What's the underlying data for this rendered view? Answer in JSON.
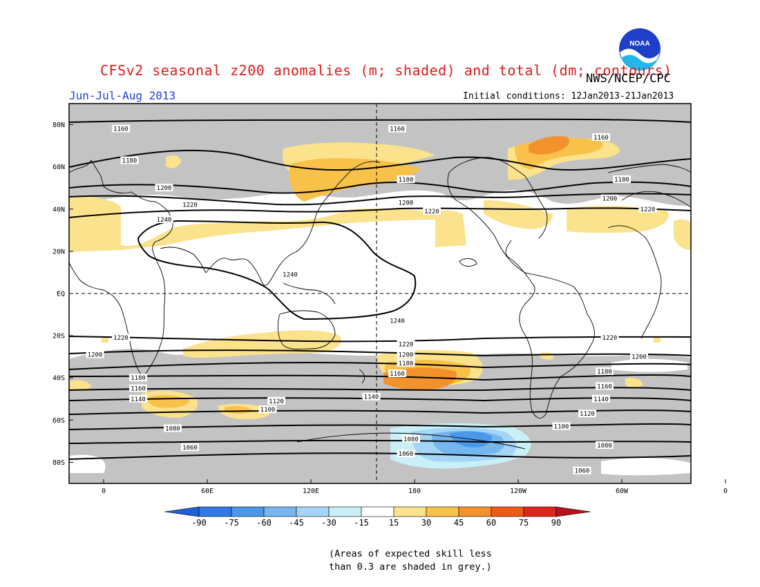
{
  "title": "CFSv2 seasonal z200 anomalies (m; shaded) and total (dm; contours)",
  "agency": "NWS/NCEP/CPC",
  "logo_text": "NOAA",
  "season": "Jun-Jul-Aug 2013",
  "initial_conditions": "Initial conditions: 12Jan2013-21Jan2013",
  "lat_labels": [
    "80N",
    "60N",
    "40N",
    "20N",
    "EQ",
    "20S",
    "40S",
    "60S",
    "80S"
  ],
  "lon_labels": [
    "0",
    "60E",
    "120E",
    "180",
    "120W",
    "60W",
    "0"
  ],
  "contour_labels": [
    {
      "text": "1160",
      "lat": 78,
      "lon": 10
    },
    {
      "text": "1160",
      "lat": 78,
      "lon": 170
    },
    {
      "text": "1160",
      "lat": 74,
      "lon": 288
    },
    {
      "text": "1180",
      "lat": 63,
      "lon": 15
    },
    {
      "text": "1180",
      "lat": 54,
      "lon": 175
    },
    {
      "text": "1180",
      "lat": 54,
      "lon": 300
    },
    {
      "text": "1200",
      "lat": 50,
      "lon": 35
    },
    {
      "text": "1200",
      "lat": 43,
      "lon": 175
    },
    {
      "text": "1200",
      "lat": 45,
      "lon": 293
    },
    {
      "text": "1220",
      "lat": 42,
      "lon": 50
    },
    {
      "text": "1220",
      "lat": 39,
      "lon": 190
    },
    {
      "text": "1220",
      "lat": 40,
      "lon": 315
    },
    {
      "text": "1240",
      "lat": 35,
      "lon": 35
    },
    {
      "text": "1240",
      "lat": 9,
      "lon": 108
    },
    {
      "text": "1240",
      "lat": -13,
      "lon": 170
    },
    {
      "text": "1220",
      "lat": -21,
      "lon": 10
    },
    {
      "text": "1220",
      "lat": -24,
      "lon": 175
    },
    {
      "text": "1220",
      "lat": -21,
      "lon": 293
    },
    {
      "text": "1200",
      "lat": -29,
      "lon": -5
    },
    {
      "text": "1200",
      "lat": -29,
      "lon": 175
    },
    {
      "text": "1200",
      "lat": -30,
      "lon": 310
    },
    {
      "text": "1180",
      "lat": -33,
      "lon": 175
    },
    {
      "text": "1180",
      "lat": -37,
      "lon": 290
    },
    {
      "text": "1180",
      "lat": -40,
      "lon": 20
    },
    {
      "text": "1160",
      "lat": -38,
      "lon": 170
    },
    {
      "text": "1160",
      "lat": -45,
      "lon": 20
    },
    {
      "text": "1160",
      "lat": -44,
      "lon": 290
    },
    {
      "text": "1140",
      "lat": -50,
      "lon": 20
    },
    {
      "text": "1140",
      "lat": -49,
      "lon": 155
    },
    {
      "text": "1140",
      "lat": -50,
      "lon": 288
    },
    {
      "text": "1120",
      "lat": -51,
      "lon": 100
    },
    {
      "text": "1120",
      "lat": -57,
      "lon": 280
    },
    {
      "text": "1100",
      "lat": -55,
      "lon": 95
    },
    {
      "text": "1100",
      "lat": -63,
      "lon": 265
    },
    {
      "text": "1080",
      "lat": -64,
      "lon": 40
    },
    {
      "text": "1080",
      "lat": -69,
      "lon": 178
    },
    {
      "text": "1080",
      "lat": -72,
      "lon": 290
    },
    {
      "text": "1060",
      "lat": -73,
      "lon": 50
    },
    {
      "text": "1060",
      "lat": -76,
      "lon": 175
    },
    {
      "text": "1060",
      "lat": -84,
      "lon": 277
    }
  ],
  "colorbar": {
    "labels": [
      "-90",
      "-75",
      "-60",
      "-45",
      "-30",
      "-15",
      "15",
      "30",
      "45",
      "60",
      "75",
      "90"
    ],
    "colors": [
      "#1f5fd6",
      "#2f7be3",
      "#4a98e8",
      "#76b6ef",
      "#a5d5f6",
      "#c9f0f6",
      "#ffffff",
      "#fbe28c",
      "#f8c24a",
      "#f3922c",
      "#ef5a1a",
      "#e0251a",
      "#b8111b"
    ]
  },
  "grey_color": "#c3c3c3",
  "note_lines": [
    "(Areas of expected skill less",
    "than 0.3 are shaded in grey.)"
  ]
}
